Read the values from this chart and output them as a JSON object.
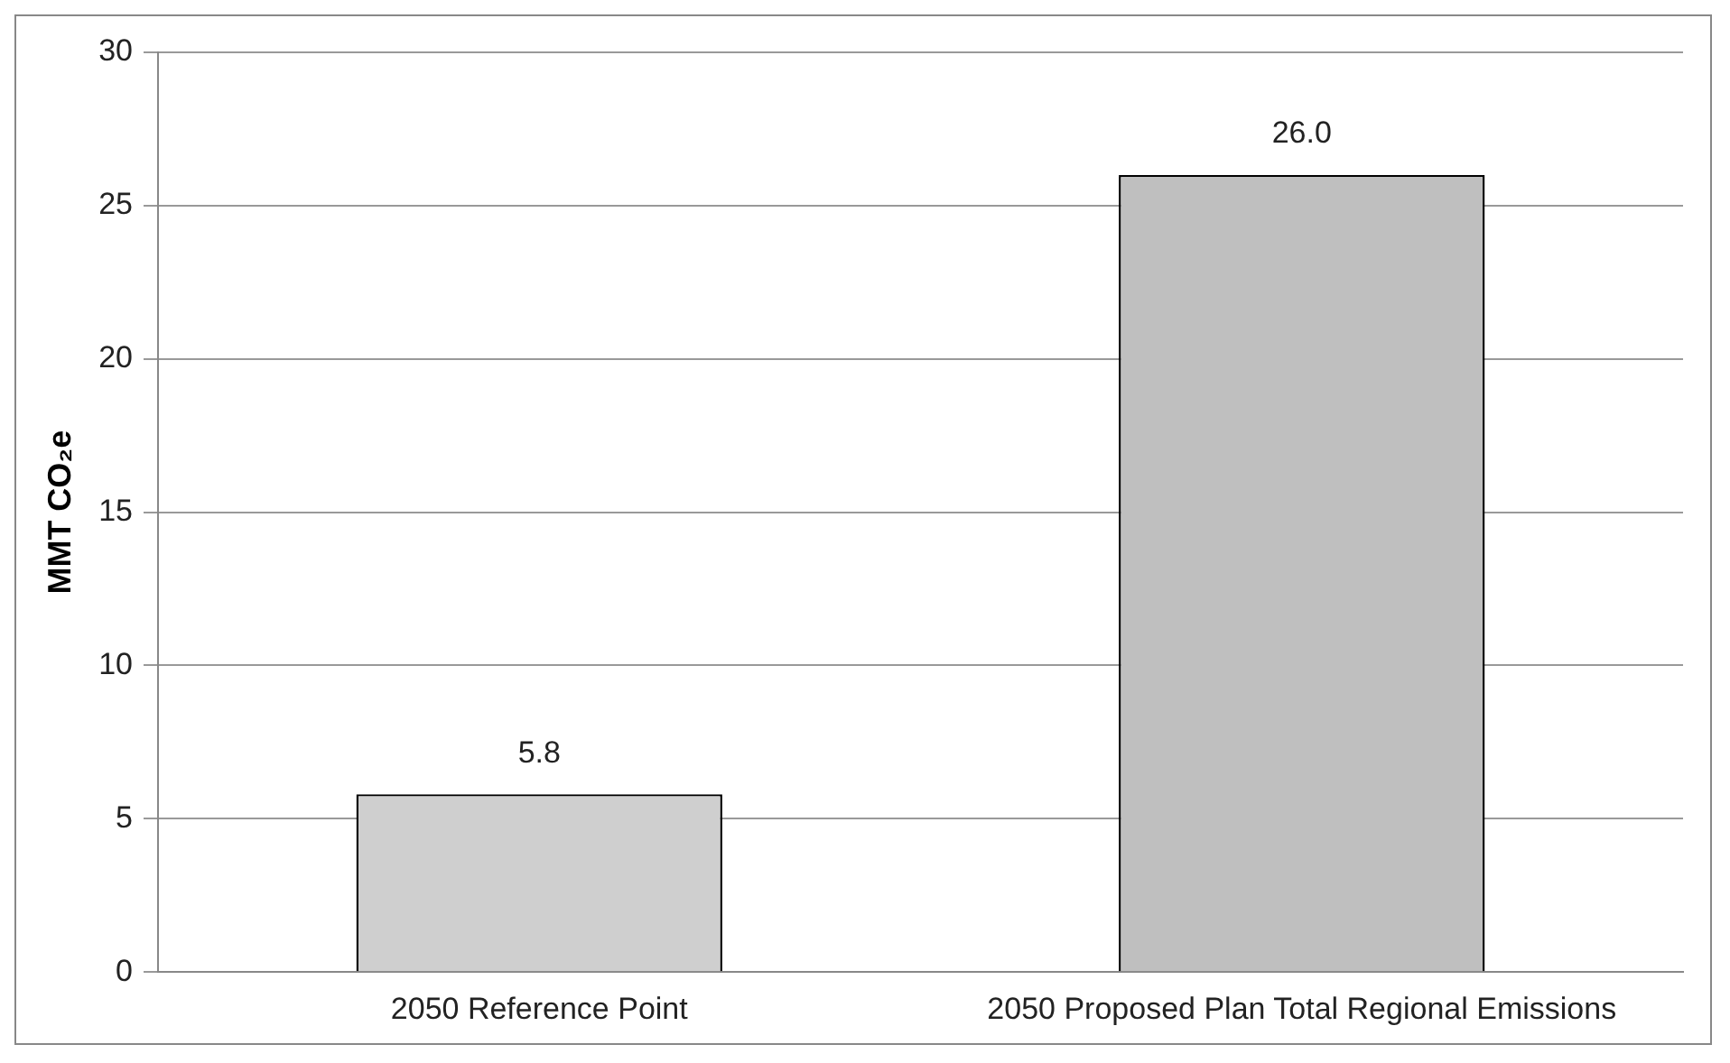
{
  "chart_data": {
    "type": "bar",
    "ylabel": "MMT CO₂e",
    "categories": [
      "2050 Reference Point",
      "2050 Proposed Plan Total Regional Emissions"
    ],
    "values": [
      5.8,
      26.0
    ],
    "value_labels": [
      "5.8",
      "26.0"
    ],
    "colors": [
      "#cfcfcf",
      "#bfbfbf"
    ],
    "ylim": [
      0,
      30
    ],
    "yticks": [
      0,
      5,
      10,
      15,
      20,
      25,
      30
    ],
    "grid": "y",
    "legend": false
  }
}
